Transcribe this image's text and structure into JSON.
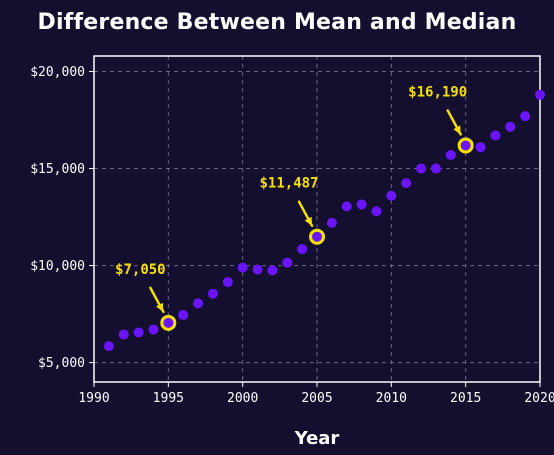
{
  "chart_data": {
    "type": "scatter",
    "title": "Difference Between Mean and Median",
    "xlabel": "Year",
    "ylabel": "",
    "xlim": [
      1990,
      2020
    ],
    "ylim": [
      4000,
      20800
    ],
    "x_ticks": [
      1990,
      1995,
      2000,
      2005,
      2010,
      2015,
      2020
    ],
    "x_tick_labels": [
      "1990",
      "1995",
      "2000",
      "2005",
      "2010",
      "2015",
      "2020"
    ],
    "y_ticks": [
      5000,
      10000,
      15000,
      20000
    ],
    "y_tick_labels": [
      "$5,000",
      "$10,000",
      "$15,000",
      "$20,000"
    ],
    "grid": true,
    "series": [
      {
        "color": "#6a14ff",
        "points": [
          {
            "x": 1991,
            "y": 5850
          },
          {
            "x": 1992,
            "y": 6450
          },
          {
            "x": 1993,
            "y": 6550
          },
          {
            "x": 1994,
            "y": 6700
          },
          {
            "x": 1995,
            "y": 7050
          },
          {
            "x": 1996,
            "y": 7450
          },
          {
            "x": 1997,
            "y": 8050
          },
          {
            "x": 1998,
            "y": 8550
          },
          {
            "x": 1999,
            "y": 9150
          },
          {
            "x": 2000,
            "y": 9900
          },
          {
            "x": 2001,
            "y": 9800
          },
          {
            "x": 2002,
            "y": 9750
          },
          {
            "x": 2003,
            "y": 10150
          },
          {
            "x": 2004,
            "y": 10850
          },
          {
            "x": 2005,
            "y": 11487
          },
          {
            "x": 2006,
            "y": 12200
          },
          {
            "x": 2007,
            "y": 13050
          },
          {
            "x": 2008,
            "y": 13150
          },
          {
            "x": 2009,
            "y": 12800
          },
          {
            "x": 2010,
            "y": 13600
          },
          {
            "x": 2011,
            "y": 14250
          },
          {
            "x": 2012,
            "y": 15000
          },
          {
            "x": 2013,
            "y": 15000
          },
          {
            "x": 2014,
            "y": 15700
          },
          {
            "x": 2015,
            "y": 16190
          },
          {
            "x": 2016,
            "y": 16100
          },
          {
            "x": 2017,
            "y": 16700
          },
          {
            "x": 2018,
            "y": 17150
          },
          {
            "x": 2019,
            "y": 17700
          },
          {
            "x": 2020,
            "y": 18800
          }
        ]
      }
    ],
    "annotations": [
      {
        "x": 1995,
        "y": 7050,
        "label": "$7,050"
      },
      {
        "x": 2005,
        "y": 11487,
        "label": "$11,487"
      },
      {
        "x": 2015,
        "y": 16190,
        "label": "$16,190"
      }
    ],
    "colors": {
      "background": "#140f2e",
      "point": "#6a14ff",
      "highlight": "#f5e000",
      "text": "#ffffff",
      "grid": "#8a87a8"
    }
  }
}
